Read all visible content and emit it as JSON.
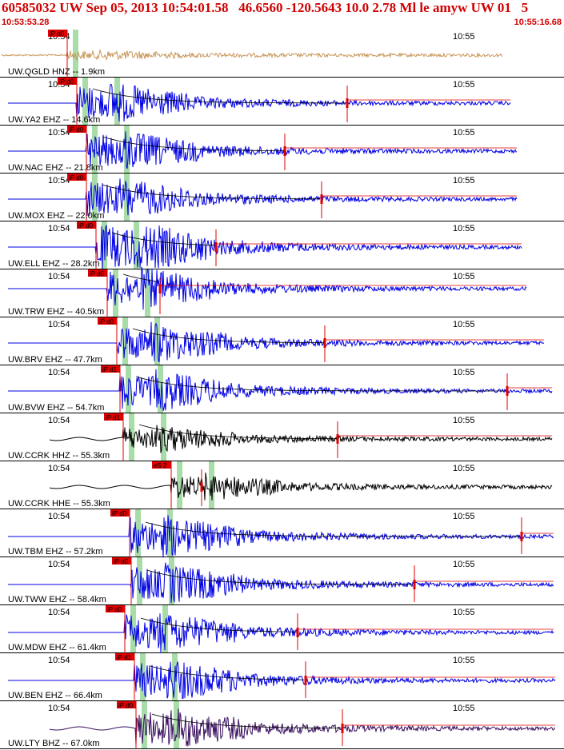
{
  "header": {
    "title": "60585032 UW Sep 05, 2013 10:54:01.58   46.6560 -120.5643 10.0 2.78 Ml le amyw UW 01   5",
    "start_time": "10:53:53.28",
    "end_time": "10:55:16.68"
  },
  "colors": {
    "header_text": "#d00000",
    "pick_red": "#e00000",
    "envelope": "#000000",
    "green_band": "#a8dca8",
    "brown_trace": "#c8965a",
    "blue_trace": "#0000e6",
    "black_trace": "#000000",
    "purple_trace": "#3a1060"
  },
  "traces": [
    {
      "label": "UW.QGLD HNZ -- 1.9km",
      "color": "brown",
      "t1": "10:54",
      "t2": "10:55",
      "pick": "iP d0"
    },
    {
      "label": "UW.YA2 EHZ -- 14.6km",
      "color": "blue",
      "t1": "10:54",
      "t2": "10:55",
      "pick": "iP d0"
    },
    {
      "label": "UW.NAC EHZ -- 21.8km",
      "color": "blue",
      "t1": "10:54",
      "t2": "10:55",
      "pick": "iP d0"
    },
    {
      "label": "UW.MOX EHZ -- 22.0km",
      "color": "blue",
      "t1": "10:54",
      "t2": "10:55",
      "pick": "iP d0"
    },
    {
      "label": "UW.ELL EHZ -- 28.2km",
      "color": "blue",
      "t1": "10:54",
      "t2": "10:55",
      "pick": "iP d0"
    },
    {
      "label": "UW.TRW EHZ -- 40.5km",
      "color": "blue",
      "t1": "10:54",
      "t2": "10:55",
      "pick": "iP d0"
    },
    {
      "label": "UW.BRV EHZ -- 47.7km",
      "color": "blue",
      "t1": "10:54",
      "t2": "10:55",
      "pick": "iP d0"
    },
    {
      "label": "UW.BVW EHZ -- 54.7km",
      "color": "blue",
      "t1": "10:54",
      "t2": "10:55",
      "pick": "iP d1"
    },
    {
      "label": "UW.CCRK HHZ -- 55.3km",
      "color": "black",
      "t1": "10:54",
      "t2": "10:55",
      "pick": "iP d1"
    },
    {
      "label": "UW.CCRK HHE -- 55.3km",
      "color": "black",
      "t1": "10:54",
      "t2": "10:55",
      "pick": "eS 2"
    },
    {
      "label": "UW.TBM EHZ -- 57.2km",
      "color": "blue",
      "t1": "10:54",
      "t2": "10:55",
      "pick": "iP d0"
    },
    {
      "label": "UW.TWW EHZ -- 58.4km",
      "color": "blue",
      "t1": "10:54",
      "t2": "10:55",
      "pick": "iP d0"
    },
    {
      "label": "UW.MDW EHZ -- 61.4km",
      "color": "blue",
      "t1": "10:54",
      "t2": "10:55",
      "pick": "iP d0"
    },
    {
      "label": "UW.BEN EHZ -- 66.4km",
      "color": "blue",
      "t1": "10:54",
      "t2": "10:55",
      "pick": "iP d1"
    },
    {
      "label": "UW.LTY BHZ -- 67.0km",
      "color": "purple",
      "t1": "10:54",
      "t2": "10:55",
      "pick": "iP d0"
    }
  ]
}
